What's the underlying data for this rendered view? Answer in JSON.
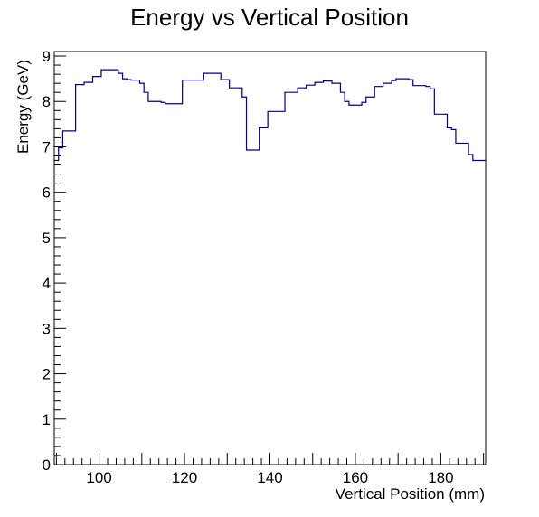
{
  "chart_data": {
    "type": "histogram-step",
    "title": "Energy vs Vertical Position",
    "xlabel": "Vertical Position (mm)",
    "ylabel": "Energy (GeV)",
    "xlim": [
      89.5,
      190.5
    ],
    "ylim": [
      0,
      9.1
    ],
    "x_major_ticks": [
      100,
      120,
      140,
      160,
      180
    ],
    "x_minor_step": 2,
    "y_major_ticks": [
      0,
      1,
      2,
      3,
      4,
      5,
      6,
      7,
      8,
      9
    ],
    "y_minor_step": 0.2,
    "grid": false,
    "line_color": "#000080",
    "bin_edges": [
      89.5,
      90.5,
      91.5,
      94.5,
      96.5,
      98.5,
      100.5,
      104.5,
      105.5,
      106.5,
      107.5,
      109.5,
      110.5,
      111.5,
      114.5,
      115.5,
      119.5,
      124.5,
      128.5,
      130.5,
      133.5,
      134.5,
      137.5,
      139.5,
      143.5,
      146.5,
      148.5,
      150.5,
      152.5,
      154.5,
      156.5,
      157.5,
      158.5,
      161.5,
      162.5,
      164.5,
      166.5,
      168.5,
      169.5,
      171.5,
      172.5,
      173.5,
      176.5,
      177.5,
      178.5,
      181.5,
      182.5,
      183.5,
      186.5,
      187.5,
      188.5,
      190.5
    ],
    "values": [
      6.7,
      6.98,
      7.35,
      8.37,
      8.42,
      8.55,
      8.7,
      8.62,
      8.5,
      8.48,
      8.47,
      8.4,
      8.2,
      8.0,
      7.98,
      7.95,
      8.47,
      8.62,
      8.48,
      8.3,
      8.1,
      6.93,
      7.42,
      7.78,
      8.2,
      8.3,
      8.36,
      8.42,
      8.45,
      8.4,
      8.2,
      8.0,
      7.92,
      7.98,
      8.1,
      8.33,
      8.4,
      8.46,
      8.5,
      8.5,
      8.48,
      8.35,
      8.33,
      8.28,
      7.72,
      7.42,
      7.38,
      7.08,
      6.83,
      6.7,
      6.7
    ]
  }
}
